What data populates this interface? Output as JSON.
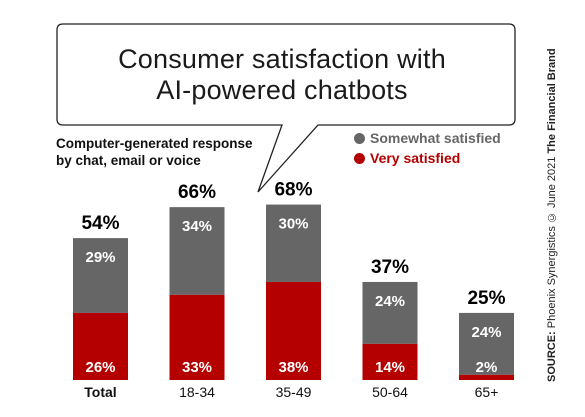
{
  "title_lines": [
    "Consumer satisfaction with",
    "AI-powered chatbots"
  ],
  "subtitle_lines": [
    "Computer-generated response",
    "by chat, email or voice"
  ],
  "source": {
    "label": "SOURCE:",
    "text": " Phoenix Synergistics © June 2021 ",
    "brand": "The Financial Brand"
  },
  "colors": {
    "somewhat": "#666666",
    "very": "#b50000",
    "bubble_stroke": "#222222"
  },
  "chart_data": {
    "type": "bar",
    "stacked": true,
    "categories": [
      "Total",
      "18-34",
      "35-49",
      "50-64",
      "65+"
    ],
    "series": [
      {
        "name": "Very satisfied",
        "values": [
          26,
          33,
          38,
          14,
          2
        ],
        "labels": [
          "26%",
          "33%",
          "38%",
          "14%",
          "2%"
        ]
      },
      {
        "name": "Somewhat satisfied",
        "values": [
          29,
          34,
          30,
          24,
          24
        ],
        "labels": [
          "29%",
          "34%",
          "30%",
          "24%",
          "24%"
        ]
      }
    ],
    "totals": [
      54,
      66,
      68,
      37,
      25
    ],
    "total_labels": [
      "54%",
      "66%",
      "68%",
      "37%",
      "25%"
    ],
    "legend": [
      "Somewhat satisfied",
      "Very satisfied"
    ],
    "legend_position": "top-right",
    "ylim": [
      0,
      70
    ],
    "grid": false
  }
}
